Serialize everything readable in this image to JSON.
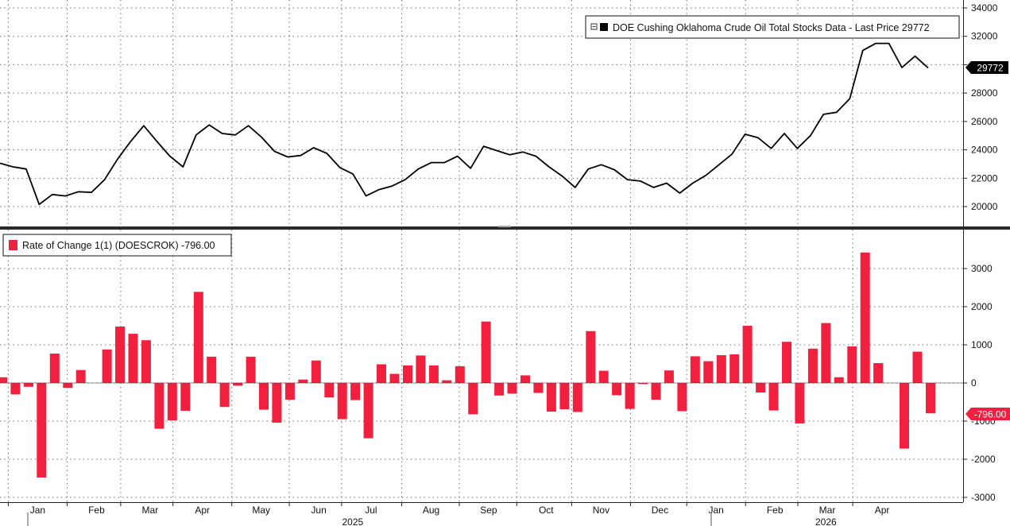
{
  "chart_data": [
    {
      "type": "line",
      "legend": {
        "entry": "DOE Cushing Oklahoma Crude Oil Total Stocks Data - Last Price 29772",
        "placement": "top-right",
        "swatch_color": "#000000"
      },
      "last_price_label": "29772",
      "ylim": [
        19000,
        34000
      ],
      "yticks": [
        20000,
        22000,
        24000,
        26000,
        28000,
        30000,
        32000,
        34000
      ],
      "ytick_labels": [
        "20000",
        "22000",
        "24000",
        "26000",
        "28000",
        "30000",
        "32000",
        "34000"
      ],
      "grid": true,
      "color": "#000000",
      "values": [
        23050,
        22800,
        22650,
        20150,
        20850,
        20750,
        21050,
        21000,
        21900,
        23350,
        24600,
        25700,
        24600,
        23550,
        22800,
        25050,
        25750,
        25150,
        25050,
        25700,
        24900,
        23900,
        23500,
        23600,
        24150,
        23750,
        22750,
        22300,
        20750,
        21200,
        21450,
        21900,
        22650,
        23100,
        23100,
        23550,
        22700,
        24250,
        23950,
        23650,
        23850,
        23550,
        22800,
        22150,
        21350,
        22650,
        22950,
        22600,
        21900,
        21800,
        21350,
        21650,
        20950,
        21650,
        22200,
        22950,
        23700,
        25100,
        24850,
        24100,
        25150,
        24100,
        25000,
        26500,
        26650,
        27600,
        31000,
        31500,
        31500,
        29800,
        30600,
        29772
      ]
    },
    {
      "type": "bar",
      "legend": {
        "entry": "Rate of Change 1(1) (DOESCROK) -796.00",
        "placement": "top-left",
        "swatch_color": "#f2203f"
      },
      "last_value_label": "-796.00",
      "ylim": [
        -3000,
        3800
      ],
      "yticks": [
        -3000,
        -2000,
        -1000,
        0,
        1000,
        2000,
        3000
      ],
      "ytick_labels": [
        "-3000",
        "-2000",
        "-1000",
        "0",
        "1000",
        "2000",
        "3000"
      ],
      "grid": true,
      "color": "#f2203f",
      "values": [
        150,
        -300,
        -100,
        -2480,
        770,
        -130,
        340,
        0,
        880,
        1480,
        1290,
        1120,
        -1200,
        -980,
        -730,
        2390,
        690,
        -630,
        -70,
        690,
        -700,
        -1040,
        -440,
        90,
        590,
        -380,
        -950,
        -450,
        -1450,
        490,
        240,
        460,
        720,
        460,
        70,
        440,
        -820,
        1610,
        -330,
        -280,
        200,
        -260,
        -750,
        -690,
        -760,
        1360,
        320,
        -320,
        -680,
        -30,
        -440,
        330,
        -740,
        700,
        570,
        730,
        750,
        1500,
        -250,
        -720,
        1080,
        -1060,
        900,
        1570,
        150,
        960,
        3420,
        520,
        0,
        -1720,
        820,
        -796
      ],
      "x_month_labels": [
        "Jan",
        "Feb",
        "Mar",
        "Apr",
        "May",
        "Jun",
        "Jul",
        "Aug",
        "Sep",
        "Oct",
        "Nov",
        "Dec",
        "Jan",
        "Feb",
        "Mar",
        "Apr"
      ],
      "x_month_positions": [
        2.7,
        7.2,
        11.3,
        15.3,
        19.8,
        24.2,
        28.2,
        32.8,
        37.2,
        41.6,
        45.8,
        50.3,
        54.6,
        59.1,
        63.1,
        67.3
      ],
      "x_year_labels": [
        "2025",
        "2026"
      ],
      "x_year_positions": [
        26.8,
        63.0
      ]
    }
  ]
}
